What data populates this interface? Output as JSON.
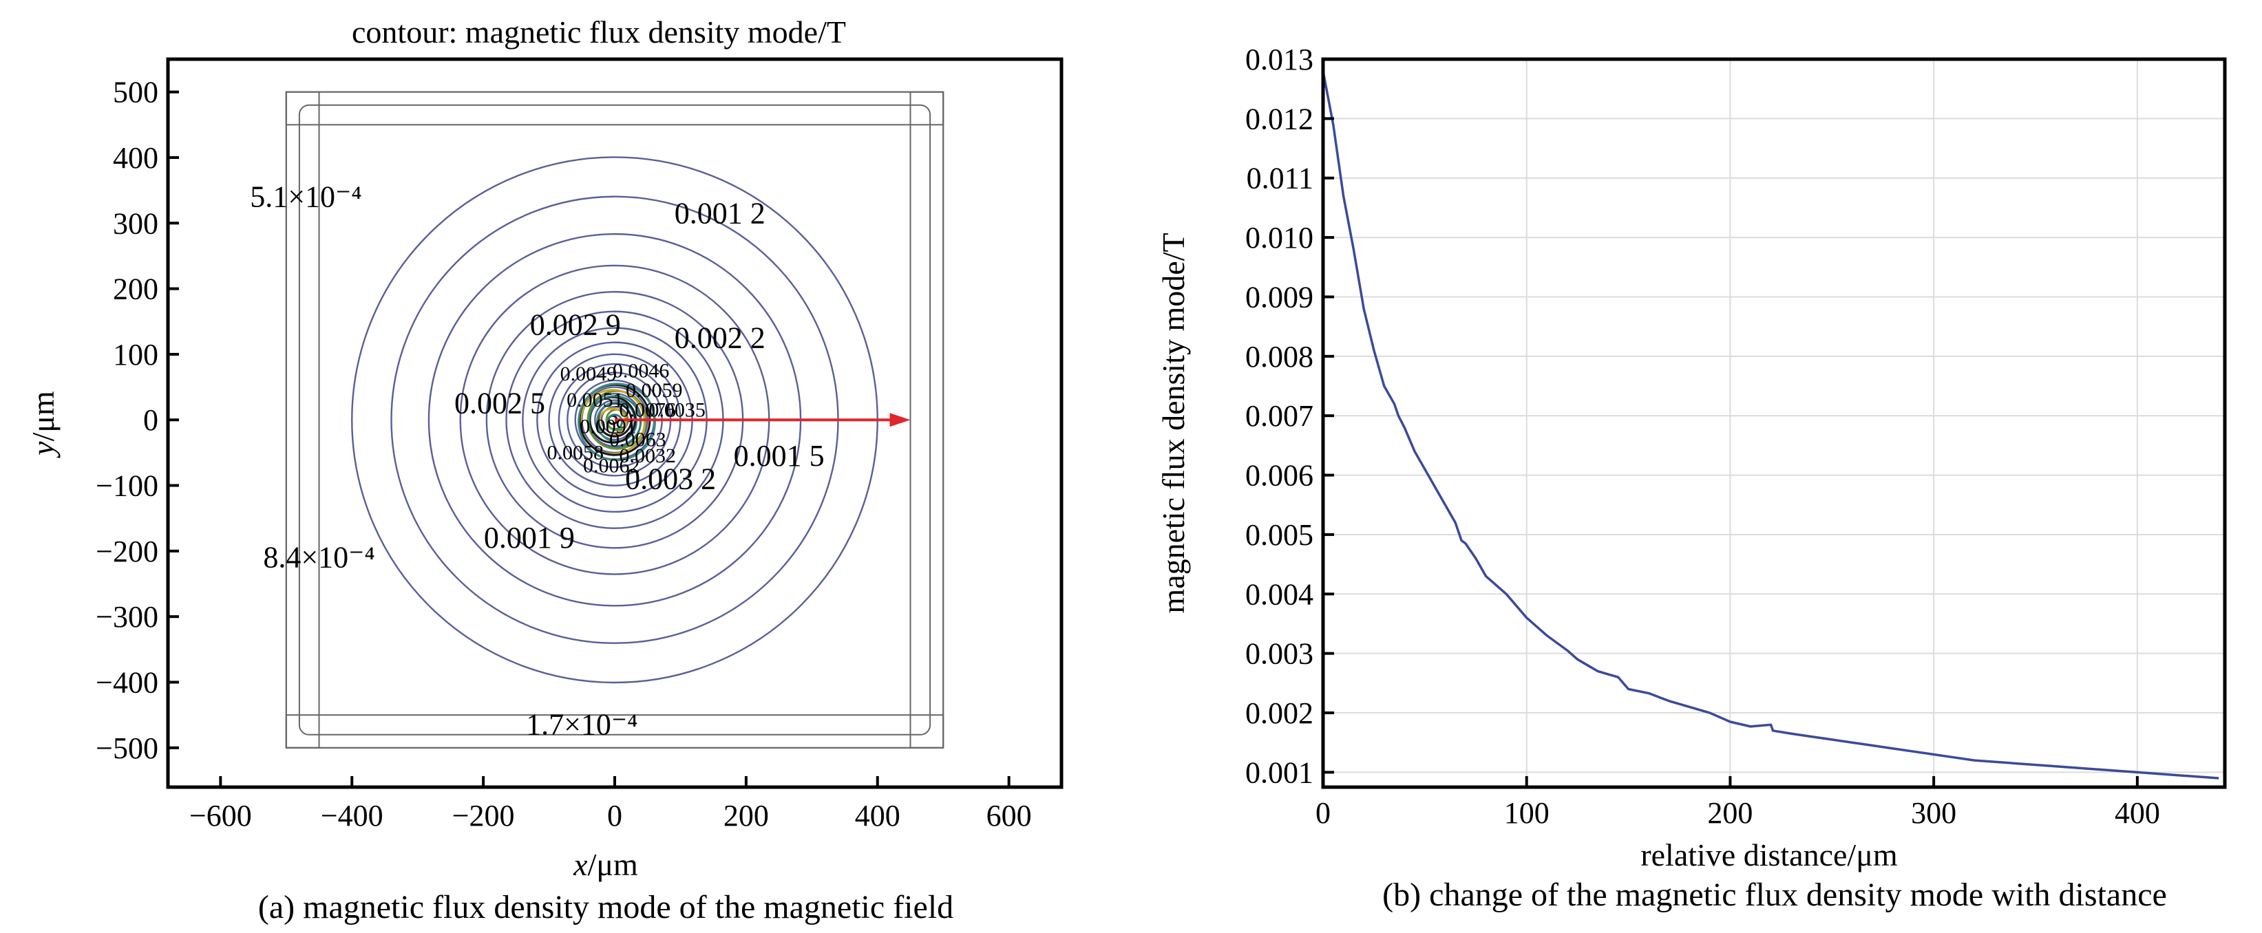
{
  "chart_data": [
    {
      "type": "contour",
      "title": "contour: magnetic flux density mode/T",
      "xlabel_var": "x",
      "xlabel_unit": "/μm",
      "ylabel_var": "y",
      "ylabel_unit": "/μm",
      "xlim": [
        -680,
        680
      ],
      "ylim": [
        -560,
        550
      ],
      "xticks": [
        -600,
        -400,
        -200,
        0,
        200,
        400,
        600
      ],
      "yticks": [
        500,
        400,
        300,
        200,
        100,
        0,
        -100,
        -200,
        -300,
        -400,
        -500
      ],
      "xtick_labels": [
        "−600",
        "−400",
        "−200",
        "0",
        "200",
        "400",
        "600"
      ],
      "ytick_labels": [
        "500",
        "400",
        "300",
        "200",
        "100",
        "0",
        "−100",
        "−200",
        "−300",
        "−400",
        "−500"
      ],
      "contour_radii_um": [
        20,
        30,
        40,
        50,
        60,
        72,
        85,
        100,
        118,
        140,
        165,
        195,
        235,
        283,
        340,
        400
      ],
      "contour_color": "#5a5f9a",
      "center_color": "#2f7f7a",
      "arrow": {
        "from": [
          0,
          0
        ],
        "to": [
          450,
          0
        ],
        "color": "#e0262a"
      },
      "contour_labels": [
        {
          "text": "5.1×10⁻⁴",
          "x": -470,
          "y": 325
        },
        {
          "text": "0.001 2",
          "x": 160,
          "y": 300
        },
        {
          "text": "0.002 9",
          "x": -60,
          "y": 130
        },
        {
          "text": "0.002 2",
          "x": 160,
          "y": 110
        },
        {
          "text": "0.002 5",
          "x": -175,
          "y": 10
        },
        {
          "text": "0.001 5",
          "x": 250,
          "y": -70
        },
        {
          "text": "0.003 2",
          "x": 85,
          "y": -105
        },
        {
          "text": "0.001 9",
          "x": -130,
          "y": -195
        },
        {
          "text": "8.4×10⁻⁴",
          "x": -450,
          "y": -225
        },
        {
          "text": "1.7×10⁻⁴",
          "x": -50,
          "y": -480
        }
      ],
      "dense_labels": [
        {
          "text": "0.0049",
          "x": -40,
          "y": 60
        },
        {
          "text": "0.0046",
          "x": 40,
          "y": 65
        },
        {
          "text": "0.0059",
          "x": 60,
          "y": 35
        },
        {
          "text": "0.0076",
          "x": 50,
          "y": 5
        },
        {
          "text": "0.0035",
          "x": 95,
          "y": 5
        },
        {
          "text": "0.0063",
          "x": 35,
          "y": -40
        },
        {
          "text": "0.0032",
          "x": 50,
          "y": -65
        },
        {
          "text": "0.0062",
          "x": -5,
          "y": -80
        },
        {
          "text": "0.0058",
          "x": -60,
          "y": -60
        },
        {
          "text": "0.0051",
          "x": -30,
          "y": 20
        },
        {
          "text": "0.0091",
          "x": -10,
          "y": -20
        }
      ],
      "caption": "(a) magnetic flux density mode of the magnetic field"
    },
    {
      "type": "line",
      "xlabel": "relative distance/μm",
      "ylabel": "magnetic flux density mode/T",
      "xlim": [
        0,
        443
      ],
      "ylim": [
        0.00075,
        0.013
      ],
      "xticks": [
        0,
        100,
        200,
        300,
        400
      ],
      "xtick_labels": [
        "0",
        "100",
        "200",
        "300",
        "400"
      ],
      "yticks": [
        0.001,
        0.002,
        0.003,
        0.004,
        0.005,
        0.006,
        0.007,
        0.008,
        0.009,
        0.01,
        0.011,
        0.012,
        0.013
      ],
      "ytick_labels": [
        "0.001",
        "0.002",
        "0.003",
        "0.004",
        "0.005",
        "0.006",
        "0.007",
        "0.008",
        "0.009",
        "0.010",
        "0.011",
        "0.012",
        "0.013"
      ],
      "grid": true,
      "line_color": "#3b4a9a",
      "x": [
        0,
        5,
        10,
        15,
        20,
        25,
        30,
        35,
        37,
        40,
        45,
        50,
        55,
        60,
        65,
        68,
        70,
        75,
        80,
        90,
        100,
        110,
        120,
        125,
        130,
        135,
        140,
        145,
        150,
        160,
        170,
        180,
        190,
        200,
        210,
        220,
        221,
        230,
        240,
        250,
        260,
        270,
        280,
        290,
        300,
        310,
        320,
        340,
        360,
        380,
        400,
        420,
        440
      ],
      "y": [
        0.0128,
        0.0119,
        0.0107,
        0.0098,
        0.0088,
        0.0081,
        0.0075,
        0.0072,
        0.007,
        0.0068,
        0.0064,
        0.0061,
        0.0058,
        0.0055,
        0.0052,
        0.0049,
        0.00485,
        0.0046,
        0.0043,
        0.004,
        0.0036,
        0.0033,
        0.00305,
        0.0029,
        0.0028,
        0.0027,
        0.00265,
        0.0026,
        0.0024,
        0.00233,
        0.0022,
        0.0021,
        0.002,
        0.00185,
        0.00177,
        0.0018,
        0.0017,
        0.00165,
        0.0016,
        0.00155,
        0.0015,
        0.00145,
        0.0014,
        0.00135,
        0.0013,
        0.00125,
        0.0012,
        0.00115,
        0.0011,
        0.00105,
        0.001,
        0.00095,
        0.0009
      ],
      "caption": "(b) change of the magnetic flux density mode with distance"
    }
  ]
}
